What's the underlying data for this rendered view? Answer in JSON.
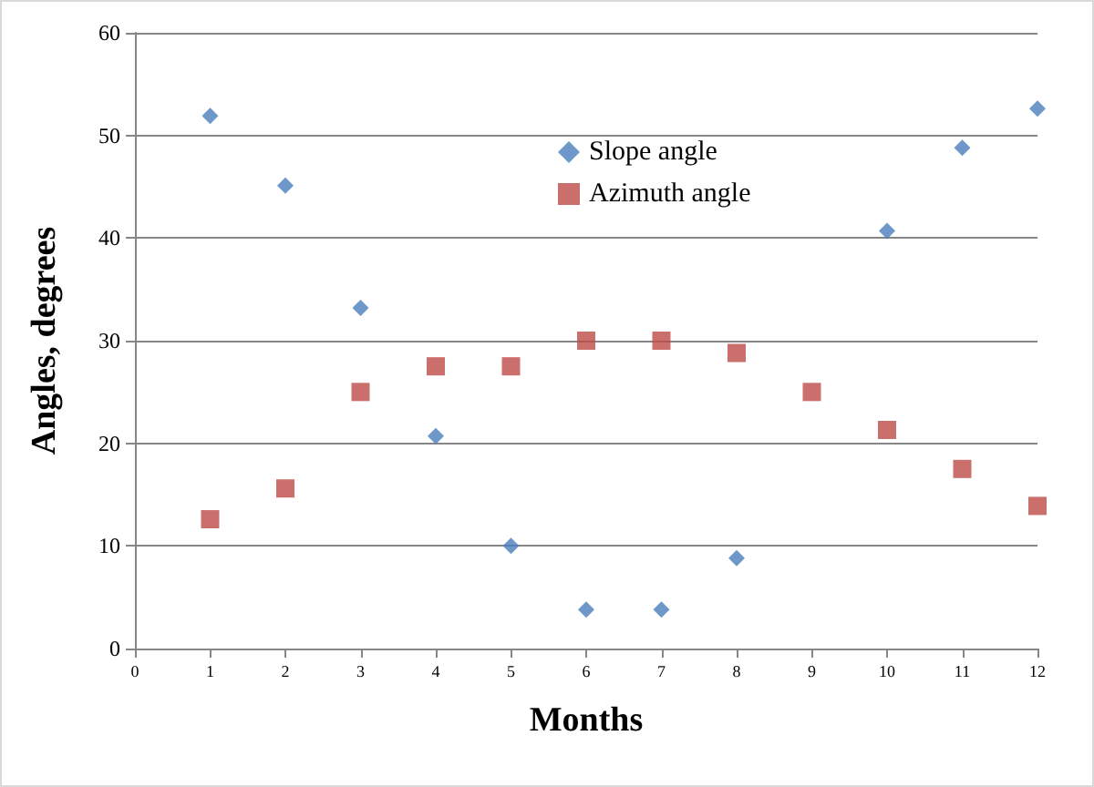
{
  "chart_data": {
    "type": "scatter",
    "xlabel": "Months",
    "ylabel": "Angles, degrees",
    "x": [
      1,
      2,
      3,
      4,
      5,
      6,
      7,
      8,
      9,
      10,
      11,
      12
    ],
    "series": [
      {
        "name": "Slope angle",
        "color": "#4a7ebb",
        "marker": "diamond",
        "values": [
          51.9,
          45.1,
          33.2,
          20.7,
          10,
          3.8,
          3.8,
          8.8,
          null,
          40.7,
          48.8,
          52.6
        ]
      },
      {
        "name": "Azimuth angle",
        "color": "#be4b48",
        "marker": "square",
        "values": [
          12.6,
          15.6,
          25,
          27.5,
          27.5,
          30,
          30,
          28.8,
          25,
          21.3,
          17.5,
          13.9
        ]
      }
    ],
    "xlim": [
      0,
      12
    ],
    "xticks": [
      0,
      1,
      2,
      3,
      4,
      5,
      6,
      7,
      8,
      9,
      10,
      11,
      12
    ],
    "ylim": [
      0,
      60
    ],
    "yticks": [
      0,
      10,
      20,
      30,
      40,
      50,
      60
    ],
    "grid": "y",
    "legend": "top right"
  }
}
